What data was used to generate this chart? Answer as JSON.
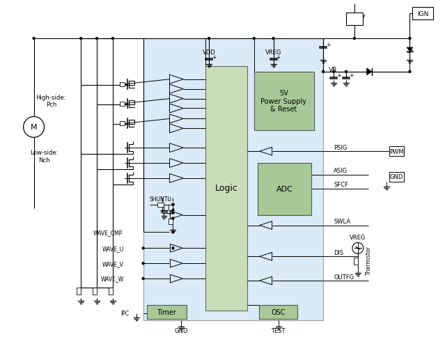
{
  "bg_color": "#ffffff",
  "light_blue_bg": "#daeaf7",
  "light_green_block": "#c8ddb8",
  "green_block": "#a8c898",
  "labels": {
    "IGN": "IGN",
    "VB": "VB",
    "VREG": "VREG",
    "VDD": "VDD",
    "GND_bot": "GND",
    "TEST": "TEST",
    "PSIG": "PSIG",
    "PWM": "PWM",
    "ASIG": "ASIG",
    "SFCF": "SFCF",
    "GND_right": "GND",
    "SWLA": "SWLA",
    "DIS": "DIS",
    "OUTFG": "OUTFG",
    "Logic": "Logic",
    "Timer": "Timer",
    "OSC": "OSC",
    "ADC": "ADC",
    "PS": "5V\nPower Supply\n& Reset",
    "WAVE_CMP": "WAVE_CMP",
    "WAVE_U": "WAVE_U",
    "WAVE_V": "WAVE_V",
    "WAVE_W": "WAVE_W",
    "IPC": "IPC",
    "SHUNTU": "SHUNTU",
    "High_side": "High-side:\nPch",
    "Low_side": "Low-side:\nNch",
    "M": "M",
    "Thermistor": "Thermistor"
  }
}
